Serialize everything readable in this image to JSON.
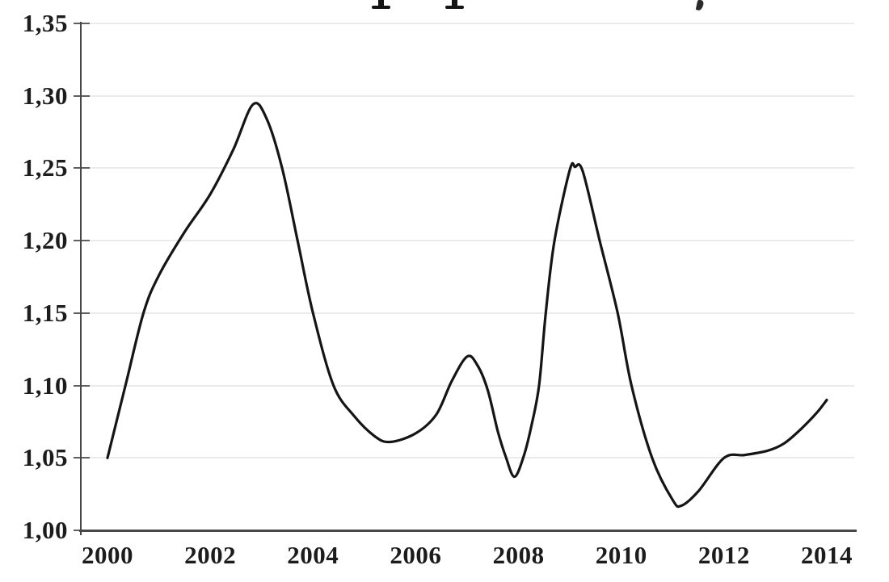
{
  "page": {
    "background": "#ffffff",
    "description": "Scanned monochrome line chart; the title is cut off by the top edge of the image, leaving only the bottom tips of two letter descenders and a comma visible"
  },
  "title_fragments": {
    "stems_x": [
      460,
      551
    ],
    "comma_x": 862
  },
  "colors": {
    "line": "#151515",
    "axis": "#474747",
    "tick": "#5f5f5f",
    "gridline": "#ebebeb",
    "label_text": "#1c1c1c"
  },
  "chart_data": {
    "type": "line",
    "title_visible": false,
    "xlabel": "",
    "ylabel": "",
    "xlim": [
      2000,
      2014
    ],
    "ylim": [
      1.0,
      1.35
    ],
    "grid": true,
    "legend": false,
    "decimal_separator": ",",
    "y_ticks": [
      "1,35",
      "1,30",
      "1,25",
      "1,20",
      "1,15",
      "1,10",
      "1,05",
      "1,00"
    ],
    "y_tick_values": [
      1.35,
      1.3,
      1.25,
      1.2,
      1.15,
      1.1,
      1.05,
      1.0
    ],
    "x_ticks": [
      "2000",
      "2002",
      "2004",
      "2006",
      "2008",
      "2010",
      "2012",
      "2014"
    ],
    "x_tick_values": [
      2000,
      2002,
      2004,
      2006,
      2008,
      2010,
      2012,
      2014
    ],
    "series": [
      {
        "name": "",
        "color": "#151515",
        "points": [
          [
            2000.0,
            1.05
          ],
          [
            2000.35,
            1.1
          ],
          [
            2000.7,
            1.15
          ],
          [
            2001.0,
            1.176
          ],
          [
            2001.5,
            1.206
          ],
          [
            2002.0,
            1.232
          ],
          [
            2002.45,
            1.263
          ],
          [
            2002.83,
            1.294
          ],
          [
            2003.1,
            1.284
          ],
          [
            2003.4,
            1.25
          ],
          [
            2003.7,
            1.2
          ],
          [
            2004.0,
            1.15
          ],
          [
            2004.4,
            1.1
          ],
          [
            2004.8,
            1.079
          ],
          [
            2005.2,
            1.065
          ],
          [
            2005.5,
            1.061
          ],
          [
            2006.0,
            1.067
          ],
          [
            2006.4,
            1.08
          ],
          [
            2006.7,
            1.103
          ],
          [
            2007.0,
            1.12
          ],
          [
            2007.2,
            1.114
          ],
          [
            2007.4,
            1.097
          ],
          [
            2007.6,
            1.068
          ],
          [
            2007.75,
            1.051
          ],
          [
            2007.92,
            1.037
          ],
          [
            2008.1,
            1.051
          ],
          [
            2008.25,
            1.072
          ],
          [
            2008.4,
            1.1
          ],
          [
            2008.53,
            1.15
          ],
          [
            2008.7,
            1.2
          ],
          [
            2009.0,
            1.249
          ],
          [
            2009.1,
            1.251
          ],
          [
            2009.25,
            1.248
          ],
          [
            2009.58,
            1.2
          ],
          [
            2009.93,
            1.15
          ],
          [
            2010.2,
            1.1
          ],
          [
            2010.6,
            1.05
          ],
          [
            2011.0,
            1.021
          ],
          [
            2011.17,
            1.017
          ],
          [
            2011.5,
            1.027
          ],
          [
            2012.0,
            1.05
          ],
          [
            2012.4,
            1.052
          ],
          [
            2012.85,
            1.055
          ],
          [
            2013.17,
            1.06
          ],
          [
            2013.5,
            1.07
          ],
          [
            2013.8,
            1.081
          ],
          [
            2014.0,
            1.09
          ]
        ]
      }
    ]
  }
}
